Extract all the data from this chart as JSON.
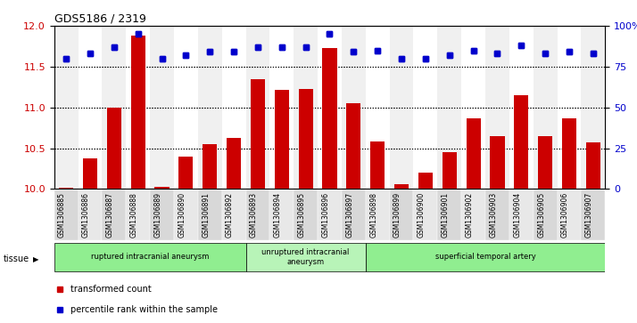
{
  "title": "GDS5186 / 2319",
  "samples": [
    "GSM1306885",
    "GSM1306886",
    "GSM1306887",
    "GSM1306888",
    "GSM1306889",
    "GSM1306890",
    "GSM1306891",
    "GSM1306892",
    "GSM1306893",
    "GSM1306894",
    "GSM1306895",
    "GSM1306896",
    "GSM1306897",
    "GSM1306898",
    "GSM1306899",
    "GSM1306900",
    "GSM1306901",
    "GSM1306902",
    "GSM1306903",
    "GSM1306904",
    "GSM1306905",
    "GSM1306906",
    "GSM1306907"
  ],
  "transformed_count": [
    10.02,
    10.37,
    11.0,
    11.88,
    10.03,
    10.4,
    10.55,
    10.63,
    11.35,
    11.22,
    11.23,
    11.73,
    11.05,
    10.58,
    10.06,
    10.2,
    10.45,
    10.87,
    10.65,
    11.15,
    10.65,
    10.87,
    10.57
  ],
  "percentile_rank": [
    80,
    83,
    87,
    95,
    80,
    82,
    84,
    84,
    87,
    87,
    87,
    95,
    84,
    85,
    80,
    80,
    82,
    85,
    83,
    88,
    83,
    84,
    83
  ],
  "groups": [
    {
      "label": "ruptured intracranial aneurysm",
      "start": 0,
      "end": 8,
      "color": "#90ee90"
    },
    {
      "label": "unruptured intracranial\naneurysm",
      "start": 8,
      "end": 13,
      "color": "#b8f4b8"
    },
    {
      "label": "superficial temporal artery",
      "start": 13,
      "end": 23,
      "color": "#90ee90"
    }
  ],
  "ylim_left": [
    10,
    12
  ],
  "ylim_right": [
    0,
    100
  ],
  "yticks_left": [
    10,
    10.5,
    11,
    11.5,
    12
  ],
  "yticks_right": [
    0,
    25,
    50,
    75,
    100
  ],
  "bar_color": "#cc0000",
  "dot_color": "#0000cc",
  "bar_bottom": 10,
  "tissue_label": "tissue",
  "legend_bar": "transformed count",
  "legend_dot": "percentile rank within the sample",
  "grid_ticks": [
    10.5,
    11,
    11.5
  ]
}
